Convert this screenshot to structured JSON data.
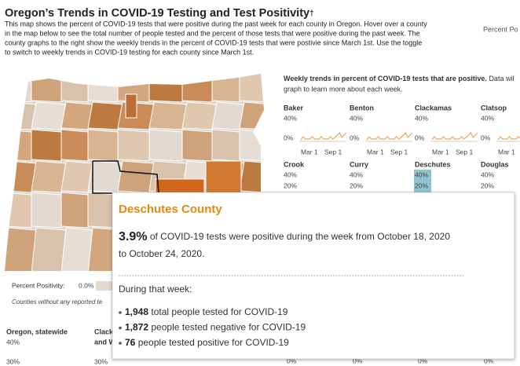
{
  "header": {
    "title": "Oregon’s Trends in COVID-19 Testing and Test Positivity",
    "title_mark": "†",
    "description": [
      "This map shows the percent of COVID-19 tests that were positive during the past week for each county in Oregon. Hover over a county",
      "in the map below to see the total number of people tested and the percent of those tests that were positive during the past week. The",
      "county graphs to the right show the weekly trends in the percent of COVID-19 tests that were postivie since March 1st. Use the toggle",
      "to switch to weekly trends in COVID-19 testing for each county since March 1st."
    ],
    "toggle_label": "Percent Po"
  },
  "map": {
    "legend_label": "Percent Positivity:",
    "legend_min": "0.0%",
    "note": "Counties without any reported te"
  },
  "trends": {
    "heading_bold": "Weekly trends in percent of COVID-19 tests that are positive.",
    "heading_rest": "Data wil",
    "heading_line2": "graph to learn more about each week.",
    "counties_row1": [
      "Baker",
      "Benton",
      "Clackamas",
      "Clatsop"
    ],
    "counties_row2": [
      "Crook",
      "Curry",
      "Deschutes",
      "Douglas"
    ],
    "axis": {
      "top": "40%",
      "mid": "20%",
      "zero": "0%",
      "x1": "Mar 1",
      "x2": "Sep 1"
    }
  },
  "bottom": {
    "statewide": "Oregon, statewide",
    "clack_1": "Clack",
    "clack_2": "and W",
    "top": "40%",
    "mid": "30%"
  },
  "tooltip": {
    "title": "Deschutes County",
    "headline_value": "3.9%",
    "headline_text": "of COVID-19 tests were positive during the week from October 18, 2020",
    "headline_text2": "to October 24, 2020.",
    "during": "During that week:",
    "bullets": [
      {
        "value": "1,948",
        "text": "total people tested for COVID-19"
      },
      {
        "value": "1,872",
        "text": "people tested negative for COVID-19"
      },
      {
        "value": "76",
        "text": "people tested positive for COVID-19"
      }
    ]
  }
}
